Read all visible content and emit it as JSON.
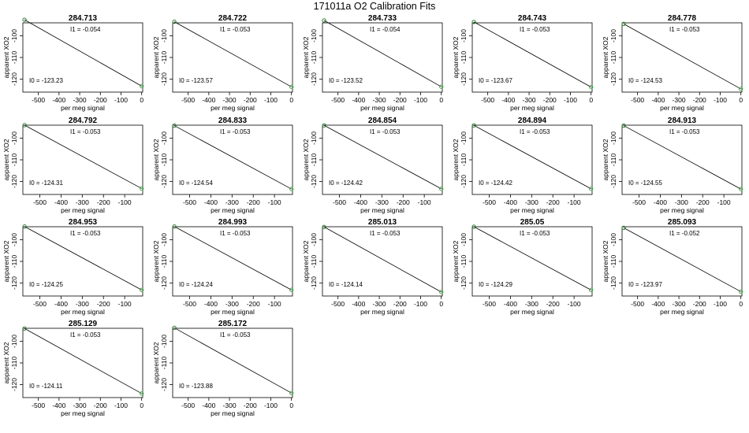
{
  "figure": {
    "title": "171011a   O2 Calibration Fits",
    "xlabel": "per meg signal",
    "ylabel": "apparent XO2",
    "coef_prefix_slope": "I1 = ",
    "coef_prefix_intercept": "I0 = "
  },
  "colors": {
    "axis": "#000000",
    "fit_line": "#000000",
    "point_start": "#2e7d32",
    "point_end": "#4caf50"
  },
  "chart_data": [
    {
      "type": "scatter",
      "title": "284.713",
      "slope": "-0.054",
      "intercept": "-123.23",
      "xlim": [
        -575,
        5
      ],
      "ylim": [
        -126,
        -94
      ],
      "xticks": [
        -500,
        -400,
        -300,
        -200,
        -100,
        0
      ],
      "yticks": [
        -100,
        -110,
        -120
      ],
      "points": [
        [
          -567,
          -92.6
        ],
        [
          0,
          -123.23
        ]
      ],
      "fit": [
        [
          -567,
          -92.6
        ],
        [
          0,
          -123.23
        ]
      ]
    },
    {
      "type": "scatter",
      "title": "284.722",
      "slope": "-0.053",
      "intercept": "-123.57",
      "xlim": [
        -575,
        5
      ],
      "ylim": [
        -126,
        -94
      ],
      "xticks": [
        -500,
        -400,
        -300,
        -200,
        -100,
        0
      ],
      "yticks": [
        -100,
        -110,
        -120
      ],
      "points": [
        [
          -567,
          -93.5
        ],
        [
          0,
          -123.57
        ]
      ],
      "fit": [
        [
          -567,
          -93.5
        ],
        [
          0,
          -123.57
        ]
      ]
    },
    {
      "type": "scatter",
      "title": "284.733",
      "slope": "-0.054",
      "intercept": "-123.52",
      "xlim": [
        -575,
        5
      ],
      "ylim": [
        -126,
        -94
      ],
      "xticks": [
        -500,
        -400,
        -300,
        -200,
        -100,
        0
      ],
      "yticks": [
        -100,
        -110,
        -120
      ],
      "points": [
        [
          -567,
          -92.9
        ],
        [
          0,
          -123.52
        ]
      ],
      "fit": [
        [
          -567,
          -92.9
        ],
        [
          0,
          -123.52
        ]
      ]
    },
    {
      "type": "scatter",
      "title": "284.743",
      "slope": "-0.053",
      "intercept": "-123.67",
      "xlim": [
        -575,
        5
      ],
      "ylim": [
        -126,
        -94
      ],
      "xticks": [
        -500,
        -400,
        -300,
        -200,
        -100,
        0
      ],
      "yticks": [
        -100,
        -110,
        -120
      ],
      "points": [
        [
          -567,
          -93.6
        ],
        [
          0,
          -123.67
        ]
      ],
      "fit": [
        [
          -567,
          -93.6
        ],
        [
          0,
          -123.67
        ]
      ]
    },
    {
      "type": "scatter",
      "title": "284.778",
      "slope": "-0.053",
      "intercept": "-124.53",
      "xlim": [
        -575,
        5
      ],
      "ylim": [
        -126,
        -94
      ],
      "xticks": [
        -500,
        -400,
        -300,
        -200,
        -100,
        0
      ],
      "yticks": [
        -100,
        -110,
        -120
      ],
      "points": [
        [
          -567,
          -94.5
        ],
        [
          0,
          -124.53
        ]
      ],
      "fit": [
        [
          -567,
          -94.5
        ],
        [
          0,
          -124.53
        ]
      ]
    },
    {
      "type": "scatter",
      "title": "284.792",
      "slope": "-0.053",
      "intercept": "-124.31",
      "xlim": [
        -580,
        -15
      ],
      "ylim": [
        -126,
        -94
      ],
      "xticks": [
        -500,
        -400,
        -300,
        -200,
        -100
      ],
      "yticks": [
        -100,
        -110,
        -120
      ],
      "points": [
        [
          -572,
          -94.0
        ],
        [
          -20,
          -123.25
        ]
      ],
      "fit": [
        [
          -572,
          -94.0
        ],
        [
          -20,
          -123.25
        ]
      ]
    },
    {
      "type": "scatter",
      "title": "284.833",
      "slope": "-0.053",
      "intercept": "-124.54",
      "xlim": [
        -580,
        -15
      ],
      "ylim": [
        -126,
        -94
      ],
      "xticks": [
        -500,
        -400,
        -300,
        -200,
        -100
      ],
      "yticks": [
        -100,
        -110,
        -120
      ],
      "points": [
        [
          -572,
          -94.2
        ],
        [
          -20,
          -123.48
        ]
      ],
      "fit": [
        [
          -572,
          -94.2
        ],
        [
          -20,
          -123.48
        ]
      ]
    },
    {
      "type": "scatter",
      "title": "284.854",
      "slope": "-0.053",
      "intercept": "-124.42",
      "xlim": [
        -580,
        -15
      ],
      "ylim": [
        -126,
        -94
      ],
      "xticks": [
        -500,
        -400,
        -300,
        -200,
        -100
      ],
      "yticks": [
        -100,
        -110,
        -120
      ],
      "points": [
        [
          -572,
          -94.1
        ],
        [
          -20,
          -123.36
        ]
      ],
      "fit": [
        [
          -572,
          -94.1
        ],
        [
          -20,
          -123.36
        ]
      ]
    },
    {
      "type": "scatter",
      "title": "284.894",
      "slope": "-0.053",
      "intercept": "-124.42",
      "xlim": [
        -580,
        -15
      ],
      "ylim": [
        -126,
        -94
      ],
      "xticks": [
        -500,
        -400,
        -300,
        -200,
        -100
      ],
      "yticks": [
        -100,
        -110,
        -120
      ],
      "points": [
        [
          -572,
          -94.1
        ],
        [
          -20,
          -123.36
        ]
      ],
      "fit": [
        [
          -572,
          -94.1
        ],
        [
          -20,
          -123.36
        ]
      ]
    },
    {
      "type": "scatter",
      "title": "284.913",
      "slope": "-0.053",
      "intercept": "-124.55",
      "xlim": [
        -580,
        -15
      ],
      "ylim": [
        -126,
        -94
      ],
      "xticks": [
        -500,
        -400,
        -300,
        -200,
        -100
      ],
      "yticks": [
        -100,
        -110,
        -120
      ],
      "points": [
        [
          -572,
          -94.2
        ],
        [
          -20,
          -123.49
        ]
      ],
      "fit": [
        [
          -572,
          -94.2
        ],
        [
          -20,
          -123.49
        ]
      ]
    },
    {
      "type": "scatter",
      "title": "284.953",
      "slope": "-0.053",
      "intercept": "-124.25",
      "xlim": [
        -580,
        -15
      ],
      "ylim": [
        -126,
        -94
      ],
      "xticks": [
        -500,
        -400,
        -300,
        -200,
        -100
      ],
      "yticks": [
        -100,
        -110,
        -120
      ],
      "points": [
        [
          -572,
          -93.9
        ],
        [
          -20,
          -123.19
        ]
      ],
      "fit": [
        [
          -572,
          -93.9
        ],
        [
          -20,
          -123.19
        ]
      ]
    },
    {
      "type": "scatter",
      "title": "284.993",
      "slope": "-0.053",
      "intercept": "-124.24",
      "xlim": [
        -580,
        -15
      ],
      "ylim": [
        -126,
        -94
      ],
      "xticks": [
        -500,
        -400,
        -300,
        -200,
        -100
      ],
      "yticks": [
        -100,
        -110,
        -120
      ],
      "points": [
        [
          -572,
          -93.9
        ],
        [
          -20,
          -123.18
        ]
      ],
      "fit": [
        [
          -572,
          -93.9
        ],
        [
          -20,
          -123.18
        ]
      ]
    },
    {
      "type": "scatter",
      "title": "285.013",
      "slope": "-0.053",
      "intercept": "-124.14",
      "xlim": [
        -575,
        5
      ],
      "ylim": [
        -126,
        -94
      ],
      "xticks": [
        -500,
        -400,
        -300,
        -200,
        -100,
        0
      ],
      "yticks": [
        -100,
        -110,
        -120
      ],
      "points": [
        [
          -567,
          -94.1
        ],
        [
          0,
          -124.14
        ]
      ],
      "fit": [
        [
          -567,
          -94.1
        ],
        [
          0,
          -124.14
        ]
      ]
    },
    {
      "type": "scatter",
      "title": "285.05",
      "slope": "-0.053",
      "intercept": "-124.29",
      "xlim": [
        -580,
        -15
      ],
      "ylim": [
        -126,
        -94
      ],
      "xticks": [
        -500,
        -400,
        -300,
        -200,
        -100
      ],
      "yticks": [
        -100,
        -110,
        -120
      ],
      "points": [
        [
          -572,
          -94.0
        ],
        [
          -20,
          -123.23
        ]
      ],
      "fit": [
        [
          -572,
          -94.0
        ],
        [
          -20,
          -123.23
        ]
      ]
    },
    {
      "type": "scatter",
      "title": "285.093",
      "slope": "-0.052",
      "intercept": "-123.97",
      "xlim": [
        -575,
        5
      ],
      "ylim": [
        -126,
        -94
      ],
      "xticks": [
        -500,
        -400,
        -300,
        -200,
        -100,
        0
      ],
      "yticks": [
        -100,
        -110,
        -120
      ],
      "points": [
        [
          -567,
          -94.5
        ],
        [
          0,
          -123.97
        ]
      ],
      "fit": [
        [
          -567,
          -94.5
        ],
        [
          0,
          -123.97
        ]
      ]
    },
    {
      "type": "scatter",
      "title": "285.129",
      "slope": "-0.053",
      "intercept": "-124.11",
      "xlim": [
        -575,
        5
      ],
      "ylim": [
        -126,
        -94
      ],
      "xticks": [
        -500,
        -400,
        -300,
        -200,
        -100,
        0
      ],
      "yticks": [
        -100,
        -110,
        -120
      ],
      "points": [
        [
          -567,
          -94.1
        ],
        [
          0,
          -124.11
        ]
      ],
      "fit": [
        [
          -567,
          -94.1
        ],
        [
          0,
          -124.11
        ]
      ]
    },
    {
      "type": "scatter",
      "title": "285.172",
      "slope": "-0.053",
      "intercept": "-123.88",
      "xlim": [
        -575,
        5
      ],
      "ylim": [
        -126,
        -94
      ],
      "xticks": [
        -500,
        -400,
        -300,
        -200,
        -100,
        0
      ],
      "yticks": [
        -100,
        -110,
        -120
      ],
      "points": [
        [
          -567,
          -93.8
        ],
        [
          0,
          -123.88
        ]
      ],
      "fit": [
        [
          -567,
          -93.8
        ],
        [
          0,
          -123.88
        ]
      ]
    }
  ]
}
